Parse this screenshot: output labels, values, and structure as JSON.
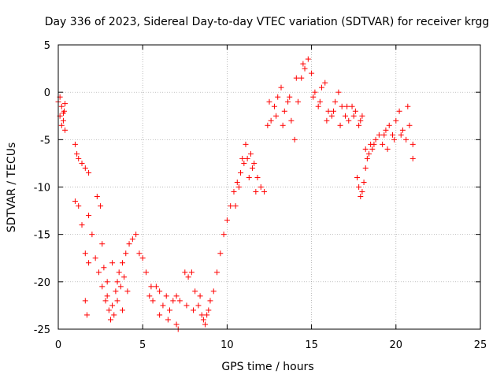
{
  "chart_data": {
    "type": "scatter",
    "title": "Day 336 of 2023, Sidereal Day-to-day VTEC variation (SDTVAR) for receiver krgg",
    "xlabel": "GPS time / hours",
    "ylabel": "SDTVAR / TECUs",
    "xlim": [
      0,
      25
    ],
    "ylim": [
      -25,
      5
    ],
    "xticks": [
      0,
      5,
      10,
      15,
      20,
      25
    ],
    "yticks": [
      -25,
      -20,
      -15,
      -10,
      -5,
      0,
      5
    ],
    "xtick_labels": [
      "0",
      "5",
      "10",
      "15",
      "20",
      "25"
    ],
    "ytick_labels": [
      "-25",
      "-20",
      "-15",
      "-10",
      "-5",
      "0",
      "5"
    ],
    "grid": true,
    "marker": "+",
    "color": "#ff0000",
    "series": [
      {
        "name": "SDTVAR",
        "x": [
          0.0,
          0.1,
          0.2,
          0.3,
          0.35,
          0.4,
          0.1,
          0.2,
          0.3,
          0.4,
          1.0,
          1.1,
          1.2,
          1.4,
          1.6,
          1.8,
          1.0,
          1.2,
          1.4,
          1.6,
          1.8,
          1.6,
          1.7,
          1.8,
          2.0,
          2.2,
          2.4,
          2.6,
          2.8,
          3.0,
          3.2,
          3.4,
          3.6,
          3.8,
          4.0,
          4.2,
          4.4,
          4.6,
          4.8,
          2.5,
          2.7,
          2.9,
          3.1,
          3.3,
          3.5,
          3.7,
          3.9,
          4.1,
          2.3,
          2.6,
          2.9,
          3.2,
          3.5,
          3.8,
          5.0,
          5.2,
          5.4,
          5.6,
          5.8,
          6.0,
          6.2,
          6.4,
          6.6,
          6.8,
          7.0,
          7.2,
          5.5,
          6.0,
          6.5,
          7.0,
          7.5,
          7.7,
          7.9,
          8.1,
          8.3,
          8.5,
          8.6,
          8.7,
          8.8,
          8.9,
          9.0,
          9.2,
          7.6,
          8.0,
          8.4,
          7.1,
          9.4,
          9.6,
          9.8,
          10.0,
          10.2,
          10.4,
          10.6,
          10.8,
          11.0,
          11.2,
          11.4,
          11.6,
          11.8,
          12.0,
          10.5,
          10.7,
          10.9,
          11.1,
          11.3,
          11.5,
          11.7,
          12.2,
          12.4,
          12.6,
          12.8,
          13.0,
          13.2,
          13.4,
          13.6,
          13.8,
          14.0,
          14.2,
          14.4,
          14.6,
          14.8,
          12.5,
          12.9,
          13.3,
          13.7,
          14.1,
          14.5,
          15.0,
          15.2,
          15.4,
          15.6,
          15.8,
          16.0,
          16.2,
          16.4,
          16.6,
          16.8,
          17.0,
          17.2,
          17.4,
          17.6,
          17.8,
          18.0,
          15.1,
          15.5,
          15.9,
          16.3,
          16.7,
          17.1,
          17.5,
          17.9,
          17.7,
          17.8,
          17.9,
          18.0,
          18.1,
          18.2,
          18.3,
          18.4,
          18.5,
          18.6,
          18.8,
          19.0,
          19.2,
          19.4,
          19.6,
          19.8,
          20.0,
          20.2,
          20.4,
          20.6,
          20.8,
          21.0,
          19.5,
          19.9,
          20.3,
          20.7,
          21.0,
          18.2,
          18.7,
          19.3
        ],
        "y": [
          -1.0,
          -2.5,
          -1.5,
          -3.0,
          -2.0,
          -4.0,
          -0.5,
          -3.5,
          -2.2,
          -1.2,
          -5.5,
          -6.5,
          -7.0,
          -7.5,
          -8.0,
          -8.5,
          -11.5,
          -12.0,
          -14.0,
          -17.0,
          -13.0,
          -22.0,
          -23.5,
          -18.0,
          -15.0,
          -17.5,
          -19.0,
          -20.5,
          -22.0,
          -23.0,
          -22.5,
          -21.0,
          -19.0,
          -18.0,
          -17.0,
          -16.0,
          -15.5,
          -15.0,
          -17.0,
          -12.0,
          -18.5,
          -21.5,
          -24.0,
          -23.5,
          -22.0,
          -20.5,
          -19.5,
          -21.0,
          -11.0,
          -16.0,
          -20.0,
          -18.0,
          -20.0,
          -23.0,
          -17.5,
          -19.0,
          -21.5,
          -22.0,
          -20.5,
          -21.0,
          -22.5,
          -21.5,
          -23.0,
          -22.0,
          -21.5,
          -22.0,
          -20.5,
          -23.5,
          -24.0,
          -24.5,
          -19.0,
          -19.5,
          -19.0,
          -21.0,
          -22.5,
          -23.5,
          -24.0,
          -24.5,
          -23.5,
          -23.0,
          -22.0,
          -21.0,
          -22.5,
          -23.0,
          -21.5,
          -25.0,
          -19.0,
          -17.0,
          -15.0,
          -13.5,
          -12.0,
          -10.5,
          -9.5,
          -8.5,
          -7.5,
          -7.0,
          -6.5,
          -7.5,
          -9.0,
          -10.0,
          -12.0,
          -10.0,
          -7.0,
          -5.5,
          -9.0,
          -8.0,
          -10.5,
          -10.5,
          -3.5,
          -3.0,
          -1.5,
          -0.5,
          0.5,
          -2.0,
          -1.0,
          -3.0,
          -5.0,
          -1.0,
          1.5,
          2.5,
          3.5,
          -1.0,
          -2.5,
          -3.5,
          -0.5,
          1.5,
          3.0,
          2.0,
          0.0,
          -1.5,
          0.5,
          1.0,
          -2.0,
          -2.5,
          -1.0,
          0.0,
          -1.5,
          -2.5,
          -3.0,
          -1.5,
          -2.0,
          -3.5,
          -2.5,
          -0.5,
          -1.0,
          -3.0,
          -2.0,
          -3.5,
          -1.5,
          -2.5,
          -3.0,
          -9.0,
          -10.0,
          -11.0,
          -10.5,
          -9.5,
          -8.0,
          -7.0,
          -6.5,
          -5.5,
          -6.0,
          -5.0,
          -4.5,
          -5.5,
          -4.0,
          -3.5,
          -4.5,
          -3.0,
          -2.0,
          -4.0,
          -5.0,
          -3.5,
          -5.5,
          -6.0,
          -5.0,
          -4.5,
          -1.5,
          -7.0,
          -6.0,
          -5.5,
          -4.5
        ]
      }
    ]
  }
}
